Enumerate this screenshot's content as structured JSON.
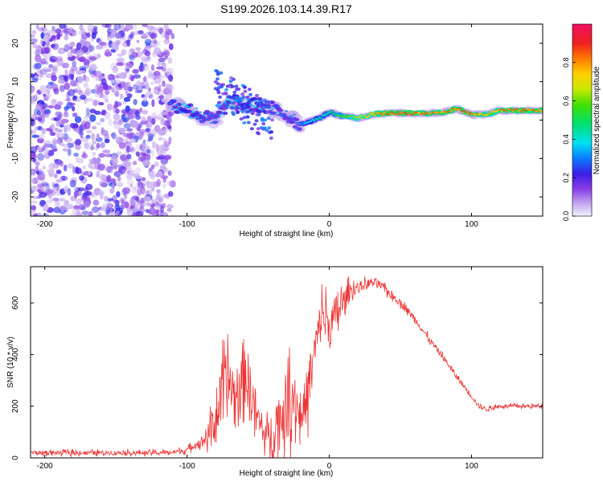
{
  "figure_title": "S199.2026.103.14.39.R17",
  "chart_data": [
    {
      "type": "heatmap",
      "title": "S199.2026.103.14.39.R17",
      "xlabel": "Height of straight line (km)",
      "ylabel": "Frequency (Hz)",
      "xlim": [
        -210,
        150
      ],
      "ylim": [
        -25,
        25
      ],
      "xticks": [
        -200,
        -100,
        0,
        100
      ],
      "yticks": [
        -20,
        -10,
        0,
        10,
        20
      ],
      "colorbar": {
        "label": "Normalized spectral amplitude",
        "range": [
          0.0,
          1.0
        ],
        "ticks": [
          0.0,
          0.2,
          0.4,
          0.6,
          0.8
        ],
        "tick_labels": [
          "0.0",
          "0.2",
          "0.4",
          "0.6",
          "0.8"
        ]
      },
      "ridge": {
        "x": [
          -110,
          -100,
          -90,
          -80,
          -70,
          -60,
          -50,
          -40,
          -30,
          -20,
          -10,
          0,
          10,
          20,
          30,
          40,
          50,
          60,
          70,
          80,
          90,
          100,
          110,
          120,
          130,
          140,
          150
        ],
        "freq": [
          4,
          3,
          1,
          0,
          5,
          4,
          4,
          3,
          1,
          -1,
          0,
          2,
          1,
          0.5,
          1.5,
          1.8,
          1.8,
          1.8,
          1.8,
          2,
          3,
          1.5,
          1.5,
          2.5,
          2.5,
          2.5,
          2.5
        ],
        "amplitude": [
          0.35,
          0.4,
          0.35,
          0.3,
          0.45,
          0.4,
          0.4,
          0.35,
          0.3,
          0.35,
          0.45,
          0.5,
          0.6,
          0.7,
          0.8,
          0.9,
          0.9,
          0.88,
          0.85,
          0.85,
          0.9,
          0.85,
          0.8,
          0.85,
          0.9,
          0.88,
          0.85
        ]
      }
    },
    {
      "type": "line",
      "xlabel": "Height of straight line (km)",
      "ylabel": "SNR (10 * v/v)",
      "xlim": [
        -210,
        150
      ],
      "ylim": [
        0,
        740
      ],
      "xticks": [
        -200,
        -100,
        0,
        100
      ],
      "yticks": [
        0,
        200,
        400,
        600
      ],
      "series": [
        {
          "name": "SNR",
          "color": "#ee3333",
          "x": [
            -210,
            -200,
            -180,
            -160,
            -140,
            -120,
            -110,
            -100,
            -95,
            -90,
            -85,
            -80,
            -75,
            -70,
            -65,
            -60,
            -55,
            -50,
            -45,
            -40,
            -35,
            -30,
            -25,
            -20,
            -15,
            -10,
            -5,
            0,
            5,
            10,
            15,
            20,
            25,
            30,
            35,
            40,
            50,
            60,
            70,
            80,
            90,
            100,
            105,
            110,
            120,
            130,
            140,
            150
          ],
          "values": [
            20,
            20,
            20,
            20,
            20,
            20,
            22,
            30,
            50,
            60,
            90,
            150,
            250,
            300,
            200,
            350,
            250,
            150,
            80,
            100,
            150,
            200,
            250,
            150,
            260,
            420,
            560,
            500,
            560,
            600,
            650,
            660,
            670,
            680,
            670,
            650,
            600,
            540,
            460,
            390,
            310,
            240,
            200,
            190,
            200,
            200,
            200,
            200
          ],
          "noise_amplitude": [
            15,
            15,
            15,
            15,
            15,
            15,
            15,
            20,
            25,
            40,
            80,
            150,
            220,
            240,
            220,
            230,
            200,
            120,
            80,
            160,
            220,
            240,
            220,
            120,
            200,
            140,
            160,
            150,
            140,
            100,
            60,
            40,
            35,
            30,
            30,
            30,
            25,
            25,
            22,
            20,
            20,
            18,
            15,
            15,
            12,
            12,
            12,
            12
          ]
        }
      ]
    }
  ]
}
